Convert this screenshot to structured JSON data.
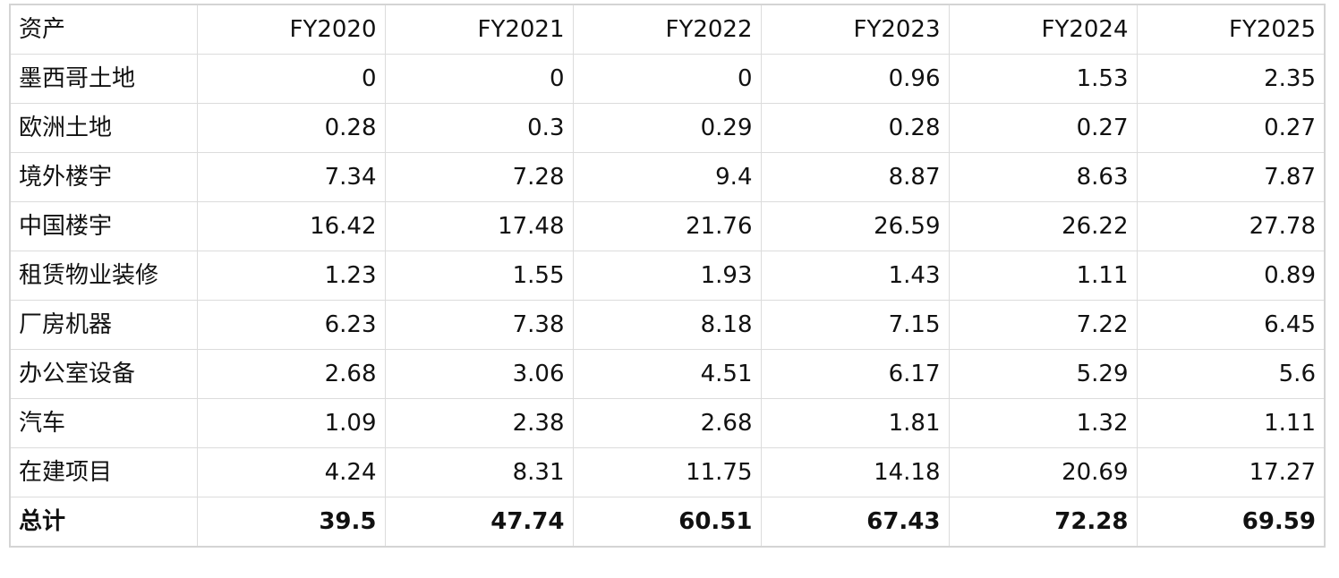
{
  "table": {
    "header": [
      "资产",
      "FY2020",
      "FY2021",
      "FY2022",
      "FY2023",
      "FY2024",
      "FY2025"
    ],
    "rows": [
      {
        "label": "墨西哥土地",
        "values": [
          "0",
          "0",
          "0",
          "0.96",
          "1.53",
          "2.35"
        ]
      },
      {
        "label": "欧洲土地",
        "values": [
          "0.28",
          "0.3",
          "0.29",
          "0.28",
          "0.27",
          "0.27"
        ]
      },
      {
        "label": "境外楼宇",
        "values": [
          "7.34",
          "7.28",
          "9.4",
          "8.87",
          "8.63",
          "7.87"
        ]
      },
      {
        "label": "中国楼宇",
        "values": [
          "16.42",
          "17.48",
          "21.76",
          "26.59",
          "26.22",
          "27.78"
        ]
      },
      {
        "label": "租赁物业装修",
        "values": [
          "1.23",
          "1.55",
          "1.93",
          "1.43",
          "1.11",
          "0.89"
        ]
      },
      {
        "label": "厂房机器",
        "values": [
          "6.23",
          "7.38",
          "8.18",
          "7.15",
          "7.22",
          "6.45"
        ]
      },
      {
        "label": "办公室设备",
        "values": [
          "2.68",
          "3.06",
          "4.51",
          "6.17",
          "5.29",
          "5.6"
        ]
      },
      {
        "label": "汽车",
        "values": [
          "1.09",
          "2.38",
          "2.68",
          "1.81",
          "1.32",
          "1.11"
        ]
      },
      {
        "label": "在建项目",
        "values": [
          "4.24",
          "8.31",
          "11.75",
          "14.18",
          "20.69",
          "17.27"
        ]
      }
    ],
    "total": {
      "label": "总计",
      "values": [
        "39.5",
        "47.74",
        "60.51",
        "67.43",
        "72.28",
        "69.59"
      ]
    }
  }
}
